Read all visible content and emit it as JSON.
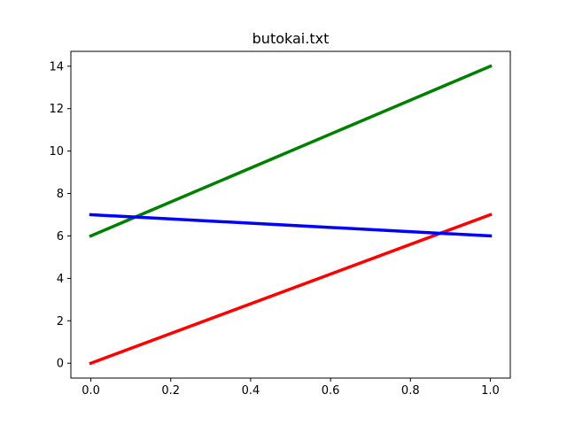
{
  "chart_data": {
    "type": "line",
    "title": "butokai.txt",
    "xlabel": "",
    "ylabel": "",
    "xlim": [
      -0.05,
      1.05
    ],
    "ylim": [
      -0.7,
      14.7
    ],
    "xticks": [
      0.0,
      0.2,
      0.4,
      0.6,
      0.8,
      1.0
    ],
    "xtick_labels": [
      "0.0",
      "0.2",
      "0.4",
      "0.6",
      "0.8",
      "1.0"
    ],
    "yticks": [
      0,
      2,
      4,
      6,
      8,
      10,
      12,
      14
    ],
    "ytick_labels": [
      "0",
      "2",
      "4",
      "6",
      "8",
      "10",
      "12",
      "14"
    ],
    "grid": false,
    "legend": false,
    "series": [
      {
        "color": "#ff0000",
        "x": [
          0,
          1
        ],
        "y": [
          0,
          7
        ]
      },
      {
        "color": "#008000",
        "x": [
          0,
          1
        ],
        "y": [
          6,
          14
        ]
      },
      {
        "color": "#0000ff",
        "x": [
          0,
          1
        ],
        "y": [
          7,
          6
        ]
      }
    ]
  }
}
